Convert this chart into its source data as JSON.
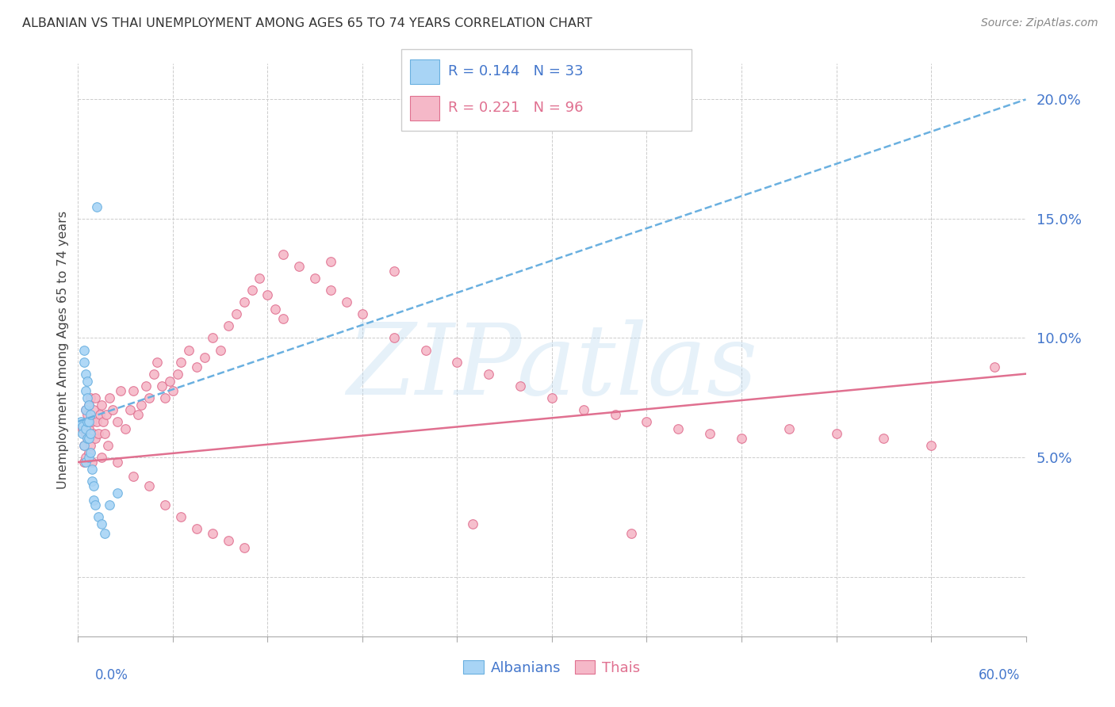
{
  "title": "ALBANIAN VS THAI UNEMPLOYMENT AMONG AGES 65 TO 74 YEARS CORRELATION CHART",
  "source": "Source: ZipAtlas.com",
  "ylabel": "Unemployment Among Ages 65 to 74 years",
  "xlim": [
    0.0,
    0.6
  ],
  "ylim": [
    -0.025,
    0.215
  ],
  "albanian_color": "#a8d4f5",
  "albanian_edge": "#6ab0e0",
  "thai_color": "#f5b8c8",
  "thai_edge": "#e07090",
  "trend_albanian_color": "#6ab0e0",
  "trend_thai_color": "#e07090",
  "watermark": "ZIPatlas",
  "albanian_R": 0.144,
  "albanian_N": 33,
  "thai_R": 0.221,
  "thai_N": 96,
  "albanian_x": [
    0.002,
    0.003,
    0.003,
    0.004,
    0.004,
    0.004,
    0.005,
    0.005,
    0.005,
    0.005,
    0.005,
    0.006,
    0.006,
    0.006,
    0.006,
    0.007,
    0.007,
    0.007,
    0.007,
    0.008,
    0.008,
    0.008,
    0.009,
    0.009,
    0.01,
    0.01,
    0.011,
    0.012,
    0.013,
    0.015,
    0.017,
    0.02,
    0.025
  ],
  "albanian_y": [
    0.065,
    0.063,
    0.06,
    0.095,
    0.09,
    0.055,
    0.085,
    0.078,
    0.07,
    0.062,
    0.048,
    0.082,
    0.075,
    0.065,
    0.058,
    0.072,
    0.065,
    0.058,
    0.05,
    0.068,
    0.06,
    0.052,
    0.045,
    0.04,
    0.038,
    0.032,
    0.03,
    0.155,
    0.025,
    0.022,
    0.018,
    0.03,
    0.035
  ],
  "thai_x": [
    0.003,
    0.004,
    0.004,
    0.005,
    0.005,
    0.005,
    0.006,
    0.006,
    0.007,
    0.007,
    0.007,
    0.008,
    0.008,
    0.009,
    0.009,
    0.01,
    0.01,
    0.011,
    0.011,
    0.012,
    0.013,
    0.014,
    0.015,
    0.016,
    0.017,
    0.018,
    0.019,
    0.02,
    0.022,
    0.025,
    0.027,
    0.03,
    0.033,
    0.035,
    0.038,
    0.04,
    0.043,
    0.045,
    0.048,
    0.05,
    0.053,
    0.055,
    0.058,
    0.06,
    0.063,
    0.065,
    0.07,
    0.075,
    0.08,
    0.085,
    0.09,
    0.095,
    0.1,
    0.105,
    0.11,
    0.115,
    0.12,
    0.125,
    0.13,
    0.14,
    0.15,
    0.16,
    0.17,
    0.18,
    0.2,
    0.22,
    0.24,
    0.26,
    0.28,
    0.3,
    0.32,
    0.34,
    0.36,
    0.38,
    0.4,
    0.42,
    0.45,
    0.48,
    0.51,
    0.54,
    0.015,
    0.025,
    0.035,
    0.045,
    0.055,
    0.065,
    0.075,
    0.085,
    0.095,
    0.105,
    0.13,
    0.16,
    0.2,
    0.25,
    0.35,
    0.58
  ],
  "thai_y": [
    0.062,
    0.055,
    0.048,
    0.07,
    0.06,
    0.05,
    0.068,
    0.058,
    0.072,
    0.062,
    0.052,
    0.075,
    0.055,
    0.065,
    0.048,
    0.07,
    0.06,
    0.075,
    0.058,
    0.065,
    0.06,
    0.068,
    0.072,
    0.065,
    0.06,
    0.068,
    0.055,
    0.075,
    0.07,
    0.065,
    0.078,
    0.062,
    0.07,
    0.078,
    0.068,
    0.072,
    0.08,
    0.075,
    0.085,
    0.09,
    0.08,
    0.075,
    0.082,
    0.078,
    0.085,
    0.09,
    0.095,
    0.088,
    0.092,
    0.1,
    0.095,
    0.105,
    0.11,
    0.115,
    0.12,
    0.125,
    0.118,
    0.112,
    0.108,
    0.13,
    0.125,
    0.12,
    0.115,
    0.11,
    0.1,
    0.095,
    0.09,
    0.085,
    0.08,
    0.075,
    0.07,
    0.068,
    0.065,
    0.062,
    0.06,
    0.058,
    0.062,
    0.06,
    0.058,
    0.055,
    0.05,
    0.048,
    0.042,
    0.038,
    0.03,
    0.025,
    0.02,
    0.018,
    0.015,
    0.012,
    0.135,
    0.132,
    0.128,
    0.022,
    0.018,
    0.088
  ],
  "yticks": [
    0.0,
    0.05,
    0.1,
    0.15,
    0.2
  ],
  "ytick_labels": [
    "",
    "5.0%",
    "10.0%",
    "15.0%",
    "20.0%"
  ]
}
